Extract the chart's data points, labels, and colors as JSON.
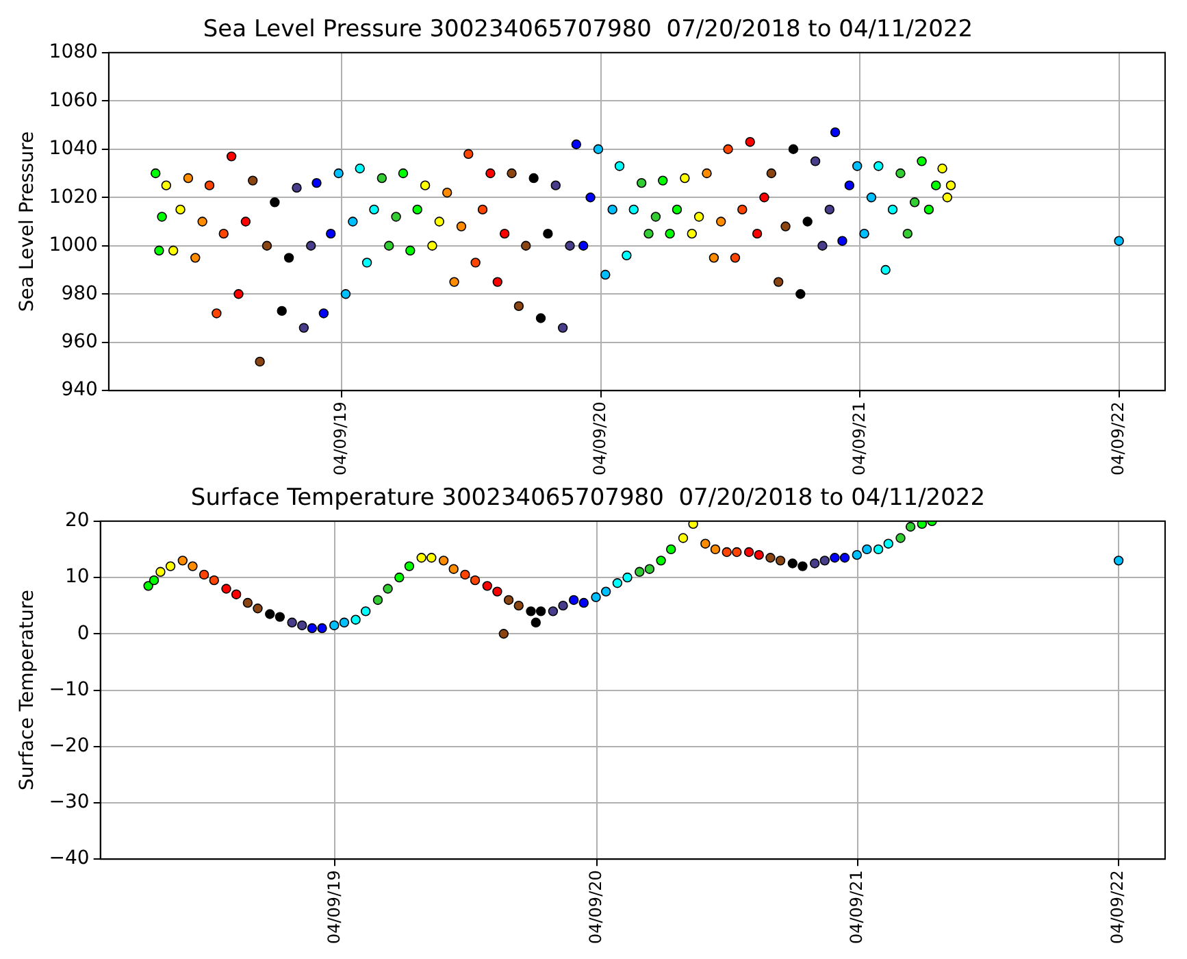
{
  "chart_data": [
    {
      "type": "scatter",
      "title": "Sea Level Pressure 300234065707980  07/20/2018 to 04/11/2022",
      "ylabel": "Sea Level Pressure",
      "xlim": [
        "2018-05-16",
        "2022-06-13"
      ],
      "xticks": [
        {
          "value": "2019-04-09",
          "label": "04/09/19"
        },
        {
          "value": "2020-04-09",
          "label": "04/09/20"
        },
        {
          "value": "2021-04-09",
          "label": "04/09/21"
        },
        {
          "value": "2022-04-09",
          "label": "04/09/22"
        }
      ],
      "ylim": [
        940,
        1080
      ],
      "yticks": [
        940,
        960,
        980,
        1000,
        1020,
        1040,
        1060,
        1080
      ],
      "grid": true,
      "marker": "circle",
      "series": [
        {
          "color": "#00ff00",
          "x": [
            "2018-07-21",
            "2018-07-26",
            "2018-07-30"
          ],
          "values": [
            1030,
            998,
            1012
          ]
        },
        {
          "color": "#ffff00",
          "x": [
            "2018-08-05",
            "2018-08-15",
            "2018-08-25"
          ],
          "values": [
            1025,
            998,
            1015
          ]
        },
        {
          "color": "#ff8c00",
          "x": [
            "2018-09-05",
            "2018-09-15",
            "2018-09-25"
          ],
          "values": [
            1028,
            995,
            1010
          ]
        },
        {
          "color": "#ff4500",
          "x": [
            "2018-10-05",
            "2018-10-15",
            "2018-10-25"
          ],
          "values": [
            1025,
            972,
            1005
          ]
        },
        {
          "color": "#ff0000",
          "x": [
            "2018-11-05",
            "2018-11-15",
            "2018-11-25"
          ],
          "values": [
            1037,
            980,
            1010
          ]
        },
        {
          "color": "#8b4513",
          "x": [
            "2018-12-05",
            "2018-12-15",
            "2018-12-25"
          ],
          "values": [
            1027,
            952,
            1000
          ]
        },
        {
          "color": "#000000",
          "x": [
            "2019-01-05",
            "2019-01-15",
            "2019-01-25"
          ],
          "values": [
            1018,
            973,
            995
          ]
        },
        {
          "color": "#483d8b",
          "x": [
            "2019-02-05",
            "2019-02-15",
            "2019-02-25"
          ],
          "values": [
            1024,
            966,
            1000
          ]
        },
        {
          "color": "#0000ff",
          "x": [
            "2019-03-05",
            "2019-03-15",
            "2019-03-25"
          ],
          "values": [
            1026,
            972,
            1005
          ]
        },
        {
          "color": "#00bfff",
          "x": [
            "2019-04-05",
            "2019-04-15",
            "2019-04-25"
          ],
          "values": [
            1030,
            980,
            1010
          ]
        },
        {
          "color": "#00ffff",
          "x": [
            "2019-05-05",
            "2019-05-15",
            "2019-05-25"
          ],
          "values": [
            1032,
            993,
            1015
          ]
        },
        {
          "color": "#32cd32",
          "x": [
            "2019-06-05",
            "2019-06-15",
            "2019-06-25"
          ],
          "values": [
            1028,
            1000,
            1012
          ]
        },
        {
          "color": "#00ff00",
          "x": [
            "2019-07-05",
            "2019-07-15",
            "2019-07-25"
          ],
          "values": [
            1030,
            998,
            1015
          ]
        },
        {
          "color": "#ffff00",
          "x": [
            "2019-08-05",
            "2019-08-15",
            "2019-08-25"
          ],
          "values": [
            1025,
            1000,
            1010
          ]
        },
        {
          "color": "#ff8c00",
          "x": [
            "2019-09-05",
            "2019-09-15",
            "2019-09-25"
          ],
          "values": [
            1022,
            985,
            1008
          ]
        },
        {
          "color": "#ff4500",
          "x": [
            "2019-10-05",
            "2019-10-15",
            "2019-10-25"
          ],
          "values": [
            1038,
            993,
            1015
          ]
        },
        {
          "color": "#ff0000",
          "x": [
            "2019-11-05",
            "2019-11-15",
            "2019-11-25"
          ],
          "values": [
            1030,
            985,
            1005
          ]
        },
        {
          "color": "#8b4513",
          "x": [
            "2019-12-05",
            "2019-12-15",
            "2019-12-25"
          ],
          "values": [
            1030,
            975,
            1000
          ]
        },
        {
          "color": "#000000",
          "x": [
            "2020-01-05",
            "2020-01-15",
            "2020-01-25"
          ],
          "values": [
            1028,
            970,
            1005
          ]
        },
        {
          "color": "#483d8b",
          "x": [
            "2020-02-05",
            "2020-02-15",
            "2020-02-25"
          ],
          "values": [
            1025,
            966,
            1000
          ]
        },
        {
          "color": "#0000ff",
          "x": [
            "2020-03-05",
            "2020-03-15",
            "2020-03-25"
          ],
          "values": [
            1042,
            1000,
            1020
          ]
        },
        {
          "color": "#00bfff",
          "x": [
            "2020-04-05",
            "2020-04-15",
            "2020-04-25"
          ],
          "values": [
            1040,
            988,
            1015
          ]
        },
        {
          "color": "#00ffff",
          "x": [
            "2020-05-05",
            "2020-05-15",
            "2020-05-25"
          ],
          "values": [
            1033,
            996,
            1015
          ]
        },
        {
          "color": "#32cd32",
          "x": [
            "2020-06-05",
            "2020-06-15",
            "2020-06-25"
          ],
          "values": [
            1026,
            1005,
            1012
          ]
        },
        {
          "color": "#00ff00",
          "x": [
            "2020-07-05",
            "2020-07-15",
            "2020-07-25"
          ],
          "values": [
            1027,
            1005,
            1015
          ]
        },
        {
          "color": "#ffff00",
          "x": [
            "2020-08-05",
            "2020-08-15",
            "2020-08-25"
          ],
          "values": [
            1028,
            1005,
            1012
          ]
        },
        {
          "color": "#ff8c00",
          "x": [
            "2020-09-05",
            "2020-09-15",
            "2020-09-25"
          ],
          "values": [
            1030,
            995,
            1010
          ]
        },
        {
          "color": "#ff4500",
          "x": [
            "2020-10-05",
            "2020-10-15",
            "2020-10-25"
          ],
          "values": [
            1040,
            995,
            1015
          ]
        },
        {
          "color": "#ff0000",
          "x": [
            "2020-11-05",
            "2020-11-15",
            "2020-11-25"
          ],
          "values": [
            1043,
            1005,
            1020
          ]
        },
        {
          "color": "#8b4513",
          "x": [
            "2020-12-05",
            "2020-12-15",
            "2020-12-25"
          ],
          "values": [
            1030,
            985,
            1008
          ]
        },
        {
          "color": "#000000",
          "x": [
            "2021-01-05",
            "2021-01-15",
            "2021-01-25"
          ],
          "values": [
            1040,
            980,
            1010
          ]
        },
        {
          "color": "#483d8b",
          "x": [
            "2021-02-05",
            "2021-02-15",
            "2021-02-25"
          ],
          "values": [
            1035,
            1000,
            1015
          ]
        },
        {
          "color": "#0000ff",
          "x": [
            "2021-03-05",
            "2021-03-15",
            "2021-03-25"
          ],
          "values": [
            1047,
            1002,
            1025
          ]
        },
        {
          "color": "#00bfff",
          "x": [
            "2021-04-05",
            "2021-04-15",
            "2021-04-25",
            "2022-04-09"
          ],
          "values": [
            1033,
            1005,
            1020,
            1002
          ]
        },
        {
          "color": "#00ffff",
          "x": [
            "2021-05-05",
            "2021-05-15",
            "2021-05-25"
          ],
          "values": [
            1033,
            990,
            1015
          ]
        },
        {
          "color": "#32cd32",
          "x": [
            "2021-06-05",
            "2021-06-15",
            "2021-06-25"
          ],
          "values": [
            1030,
            1005,
            1018
          ]
        },
        {
          "color": "#00ff00",
          "x": [
            "2021-07-05",
            "2021-07-15",
            "2021-07-25"
          ],
          "values": [
            1035,
            1015,
            1025
          ]
        },
        {
          "color": "#ffff00",
          "x": [
            "2021-08-03",
            "2021-08-10",
            "2021-08-15"
          ],
          "values": [
            1032,
            1020,
            1025
          ]
        }
      ]
    },
    {
      "type": "scatter",
      "title": "Surface Temperature 300234065707980  07/20/2018 to 04/11/2022",
      "ylabel": "Surface Temperature",
      "xlim": [
        "2018-05-16",
        "2022-06-13"
      ],
      "xticks": [
        {
          "value": "2019-04-09",
          "label": "04/09/19"
        },
        {
          "value": "2020-04-09",
          "label": "04/09/20"
        },
        {
          "value": "2021-04-09",
          "label": "04/09/21"
        },
        {
          "value": "2022-04-09",
          "label": "04/09/22"
        }
      ],
      "ylim": [
        -40,
        20
      ],
      "yticks": [
        -40,
        -30,
        -20,
        -10,
        0,
        10,
        20
      ],
      "grid": true,
      "marker": "circle",
      "series": [
        {
          "color": "#00ff00",
          "x": [
            "2018-07-22",
            "2018-07-30"
          ],
          "values": [
            8.5,
            9.5
          ]
        },
        {
          "color": "#ffff00",
          "x": [
            "2018-08-08",
            "2018-08-22"
          ],
          "values": [
            11,
            12
          ]
        },
        {
          "color": "#ff8c00",
          "x": [
            "2018-09-08",
            "2018-09-22"
          ],
          "values": [
            13,
            12
          ]
        },
        {
          "color": "#ff4500",
          "x": [
            "2018-10-08",
            "2018-10-22"
          ],
          "values": [
            10.5,
            9.5
          ]
        },
        {
          "color": "#ff0000",
          "x": [
            "2018-11-08",
            "2018-11-22"
          ],
          "values": [
            8,
            7
          ]
        },
        {
          "color": "#8b4513",
          "x": [
            "2018-12-08",
            "2018-12-22"
          ],
          "values": [
            5.5,
            4.5
          ]
        },
        {
          "color": "#000000",
          "x": [
            "2019-01-08",
            "2019-01-22"
          ],
          "values": [
            3.5,
            3
          ]
        },
        {
          "color": "#483d8b",
          "x": [
            "2019-02-08",
            "2019-02-22"
          ],
          "values": [
            2,
            1.5
          ]
        },
        {
          "color": "#0000ff",
          "x": [
            "2019-03-08",
            "2019-03-22"
          ],
          "values": [
            1,
            1
          ]
        },
        {
          "color": "#00bfff",
          "x": [
            "2019-04-08",
            "2019-04-22"
          ],
          "values": [
            1.5,
            2
          ]
        },
        {
          "color": "#00ffff",
          "x": [
            "2019-05-08",
            "2019-05-22"
          ],
          "values": [
            2.5,
            4
          ]
        },
        {
          "color": "#32cd32",
          "x": [
            "2019-06-08",
            "2019-06-22"
          ],
          "values": [
            6,
            8
          ]
        },
        {
          "color": "#00ff00",
          "x": [
            "2019-07-08",
            "2019-07-22"
          ],
          "values": [
            10,
            12
          ]
        },
        {
          "color": "#ffff00",
          "x": [
            "2019-08-08",
            "2019-08-22"
          ],
          "values": [
            13.5,
            13.5
          ]
        },
        {
          "color": "#ff8c00",
          "x": [
            "2019-09-08",
            "2019-09-22"
          ],
          "values": [
            13,
            11.5
          ]
        },
        {
          "color": "#ff4500",
          "x": [
            "2019-10-08",
            "2019-10-22"
          ],
          "values": [
            10.5,
            9.5
          ]
        },
        {
          "color": "#ff0000",
          "x": [
            "2019-11-08",
            "2019-11-22"
          ],
          "values": [
            8.5,
            7.5
          ]
        },
        {
          "color": "#8b4513",
          "x": [
            "2019-12-01",
            "2019-12-08",
            "2019-12-22"
          ],
          "values": [
            0,
            6,
            5
          ]
        },
        {
          "color": "#000000",
          "x": [
            "2020-01-08",
            "2020-01-15",
            "2020-01-22"
          ],
          "values": [
            4,
            2,
            4
          ]
        },
        {
          "color": "#483d8b",
          "x": [
            "2020-02-08",
            "2020-02-22"
          ],
          "values": [
            4,
            5
          ]
        },
        {
          "color": "#0000ff",
          "x": [
            "2020-03-08",
            "2020-03-22"
          ],
          "values": [
            6,
            5.5
          ]
        },
        {
          "color": "#00bfff",
          "x": [
            "2020-04-08",
            "2020-04-22",
            "2022-04-09"
          ],
          "values": [
            6.5,
            7.5,
            13
          ]
        },
        {
          "color": "#00ffff",
          "x": [
            "2020-05-08",
            "2020-05-22"
          ],
          "values": [
            9,
            10
          ]
        },
        {
          "color": "#32cd32",
          "x": [
            "2020-06-08",
            "2020-06-22"
          ],
          "values": [
            11,
            11.5
          ]
        },
        {
          "color": "#00ff00",
          "x": [
            "2020-07-08",
            "2020-07-22"
          ],
          "values": [
            13,
            15
          ]
        },
        {
          "color": "#ffff00",
          "x": [
            "2020-08-08",
            "2020-08-22"
          ],
          "values": [
            17,
            19.5
          ]
        },
        {
          "color": "#ff8c00",
          "x": [
            "2020-09-08",
            "2020-09-22"
          ],
          "values": [
            16,
            15
          ]
        },
        {
          "color": "#ff4500",
          "x": [
            "2020-10-08",
            "2020-10-22"
          ],
          "values": [
            14.5,
            14.5
          ]
        },
        {
          "color": "#ff0000",
          "x": [
            "2020-11-08",
            "2020-11-22"
          ],
          "values": [
            14.5,
            14
          ]
        },
        {
          "color": "#8b4513",
          "x": [
            "2020-12-08",
            "2020-12-22"
          ],
          "values": [
            13.5,
            13
          ]
        },
        {
          "color": "#000000",
          "x": [
            "2021-01-08",
            "2021-01-22"
          ],
          "values": [
            12.5,
            12
          ]
        },
        {
          "color": "#483d8b",
          "x": [
            "2021-02-08",
            "2021-02-22"
          ],
          "values": [
            12.5,
            13
          ]
        },
        {
          "color": "#0000ff",
          "x": [
            "2021-03-08",
            "2021-03-22"
          ],
          "values": [
            13.5,
            13.5
          ]
        },
        {
          "color": "#00bfff",
          "x": [
            "2021-04-08",
            "2021-04-22"
          ],
          "values": [
            14,
            15
          ]
        },
        {
          "color": "#00ffff",
          "x": [
            "2021-05-08",
            "2021-05-22"
          ],
          "values": [
            15,
            16
          ]
        },
        {
          "color": "#32cd32",
          "x": [
            "2021-06-08",
            "2021-06-22"
          ],
          "values": [
            17,
            19
          ]
        },
        {
          "color": "#00ff00",
          "x": [
            "2021-07-08",
            "2021-07-22"
          ],
          "values": [
            19.5,
            20
          ]
        }
      ]
    }
  ]
}
